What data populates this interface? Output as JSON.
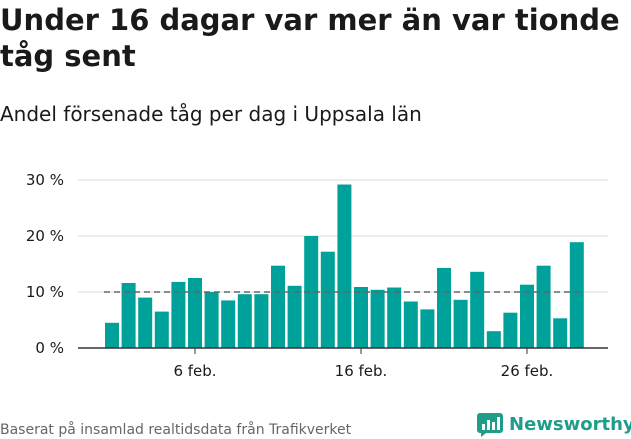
{
  "title": "Under 16 dagar var mer än var tionde tåg sent",
  "subtitle": "Andel försenade tåg per dag i Uppsala län",
  "footer": "Baserat på insamlad realtidsdata från Trafikverket",
  "brand": "Newsworthy",
  "colors": {
    "bar": "#00a19a",
    "reference": "#666666",
    "grid": "#dddddd",
    "axis": "#333333",
    "brand": "#1f9d8b"
  },
  "chart_data": {
    "type": "bar",
    "x_tick_labels": [
      "6 feb.",
      "16 feb.",
      "26 feb."
    ],
    "x_tick_days": [
      6,
      16,
      26
    ],
    "x": [
      1,
      2,
      3,
      4,
      5,
      6,
      7,
      8,
      9,
      10,
      11,
      12,
      13,
      14,
      15,
      16,
      17,
      18,
      19,
      20,
      21,
      22,
      23,
      24,
      25,
      26,
      27,
      28,
      29
    ],
    "values": [
      4.5,
      11.6,
      9,
      6.5,
      11.8,
      12.5,
      10,
      8.5,
      9.6,
      9.6,
      14.7,
      11.1,
      20,
      17.2,
      29.2,
      10.9,
      10.4,
      10.8,
      8.3,
      6.9,
      14.3,
      8.6,
      13.6,
      3,
      6.3,
      11.3,
      14.7,
      5.3,
      18.9
    ],
    "y_tick_labels": [
      "0 %",
      "10 %",
      "20 %",
      "30 %"
    ],
    "y_ticks": [
      0,
      10,
      20,
      30
    ],
    "ylim": [
      0,
      30
    ],
    "reference_line": 10,
    "grid": true
  }
}
